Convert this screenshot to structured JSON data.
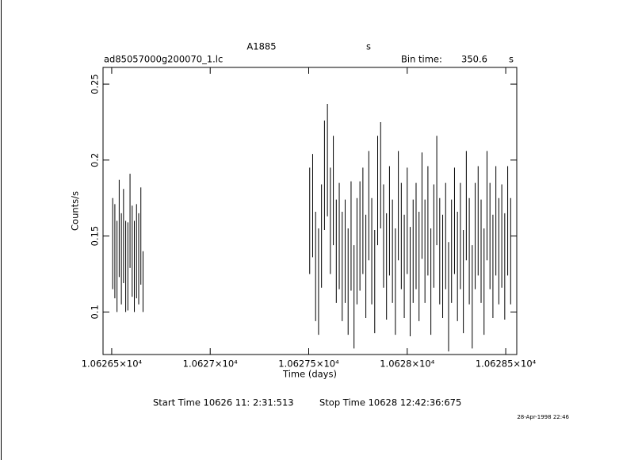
{
  "chart_data": {
    "type": "errorbar",
    "title": "A1885",
    "title_unit": "s",
    "file": "ad85057000g200070_1.lc",
    "bin_time_label": "Bin time:",
    "bin_time": "350.6",
    "bin_time_unit": "s",
    "x_label": "Time (days)",
    "y_label": "Counts/s",
    "start_time": "Start Time 10626 11: 2:31:513",
    "stop_time": "Stop Time 10628 12:42:36:675",
    "timestamp": "28-Apr-1998 22:46",
    "color": "#000000",
    "xlim": [
      10626.456,
      10628.556
    ],
    "ylim": [
      0.072,
      0.261
    ],
    "xticks": [
      {
        "value": 10626.5,
        "label": "1.06265×10⁴"
      },
      {
        "value": 10627,
        "label": "1.0627×10⁴"
      },
      {
        "value": 10627.5,
        "label": "1.06275×10⁴"
      },
      {
        "value": 10628,
        "label": "1.0628×10⁴"
      },
      {
        "value": 10628.5,
        "label": "1.06285×10⁴"
      }
    ],
    "yticks": [
      0.1,
      0.15,
      0.2,
      0.25
    ],
    "x": [
      10626.505,
      10626.516,
      10626.527,
      10626.538,
      10626.549,
      10626.56,
      10626.571,
      10626.582,
      10626.593,
      10626.604,
      10626.615,
      10626.626,
      10626.637,
      10626.648,
      10626.659,
      10627.505,
      10627.52,
      10627.535,
      10627.55,
      10627.565,
      10627.58,
      10627.595,
      10627.61,
      10627.625,
      10627.64,
      10627.655,
      10627.67,
      10627.685,
      10627.7,
      10627.715,
      10627.73,
      10627.745,
      10627.76,
      10627.775,
      10627.79,
      10627.805,
      10627.82,
      10627.835,
      10627.85,
      10627.865,
      10627.88,
      10627.895,
      10627.91,
      10627.925,
      10627.94,
      10627.955,
      10627.97,
      10627.985,
      10628,
      10628.015,
      10628.03,
      10628.045,
      10628.06,
      10628.075,
      10628.09,
      10628.105,
      10628.12,
      10628.135,
      10628.15,
      10628.165,
      10628.18,
      10628.195,
      10628.21,
      10628.225,
      10628.24,
      10628.255,
      10628.27,
      10628.285,
      10628.3,
      10628.315,
      10628.33,
      10628.345,
      10628.36,
      10628.375,
      10628.39,
      10628.405,
      10628.42,
      10628.435,
      10628.45,
      10628.465,
      10628.48,
      10628.495,
      10628.51,
      10628.525
    ],
    "values": [
      0.145,
      0.14,
      0.13,
      0.155,
      0.135,
      0.15,
      0.13,
      0.13,
      0.16,
      0.14,
      0.13,
      0.14,
      0.135,
      0.15,
      0.12,
      0.16,
      0.17,
      0.13,
      0.12,
      0.15,
      0.19,
      0.2,
      0.16,
      0.18,
      0.14,
      0.15,
      0.13,
      0.14,
      0.12,
      0.15,
      0.11,
      0.14,
      0.15,
      0.16,
      0.13,
      0.17,
      0.14,
      0.12,
      0.18,
      0.19,
      0.15,
      0.13,
      0.16,
      0.14,
      0.12,
      0.17,
      0.15,
      0.13,
      0.16,
      0.12,
      0.14,
      0.15,
      0.13,
      0.17,
      0.14,
      0.16,
      0.12,
      0.15,
      0.18,
      0.14,
      0.13,
      0.15,
      0.11,
      0.14,
      0.16,
      0.13,
      0.15,
      0.12,
      0.17,
      0.14,
      0.11,
      0.15,
      0.16,
      0.14,
      0.12,
      0.17,
      0.15,
      0.13,
      0.16,
      0.14,
      0.15,
      0.13,
      0.16,
      0.14
    ],
    "errors": [
      0.03,
      0.031,
      0.03,
      0.032,
      0.03,
      0.031,
      0.03,
      0.029,
      0.031,
      0.03,
      0.03,
      0.031,
      0.03,
      0.032,
      0.02,
      0.035,
      0.034,
      0.036,
      0.035,
      0.034,
      0.036,
      0.037,
      0.035,
      0.036,
      0.034,
      0.035,
      0.036,
      0.034,
      0.035,
      0.036,
      0.034,
      0.035,
      0.036,
      0.035,
      0.034,
      0.036,
      0.035,
      0.034,
      0.036,
      0.035,
      0.034,
      0.035,
      0.036,
      0.034,
      0.035,
      0.036,
      0.035,
      0.034,
      0.035,
      0.036,
      0.034,
      0.035,
      0.036,
      0.035,
      0.034,
      0.036,
      0.035,
      0.034,
      0.036,
      0.035,
      0.034,
      0.035,
      0.036,
      0.034,
      0.035,
      0.036,
      0.035,
      0.034,
      0.036,
      0.035,
      0.034,
      0.035,
      0.036,
      0.034,
      0.035,
      0.036,
      0.035,
      0.034,
      0.036,
      0.035,
      0.034,
      0.035,
      0.036,
      0.035
    ]
  }
}
